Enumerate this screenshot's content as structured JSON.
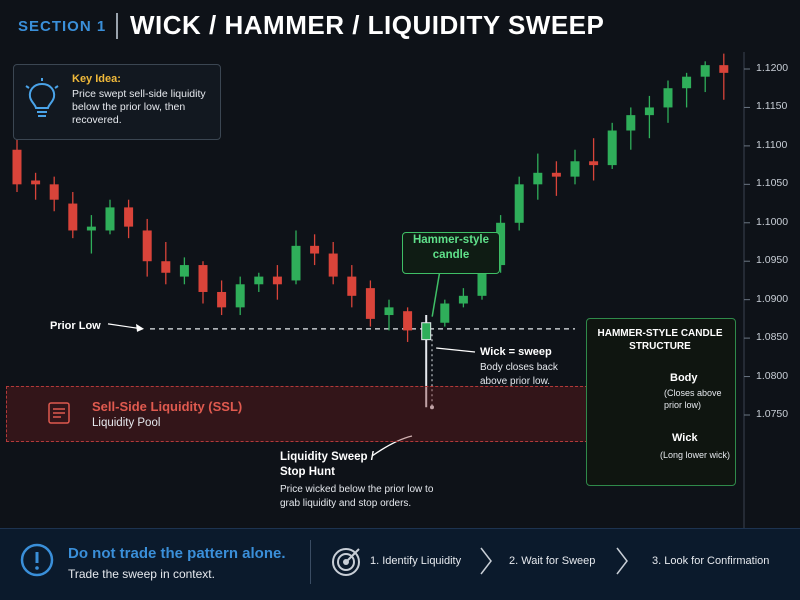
{
  "header": {
    "section": "SECTION 1",
    "title": "WICK / HAMMER / LIQUIDITY SWEEP"
  },
  "key_idea": {
    "title": "Key Idea:",
    "text": "Price swept sell-side liquidity below the prior low, then recovered."
  },
  "annotations": {
    "prior_low": "Prior Low",
    "hammer": "Hammer-style candle",
    "wick_title": "Wick = sweep",
    "wick_text": "Body closes back above prior low.",
    "sweep_title": "Liquidity Sweep / Stop Hunt",
    "sweep_text": "Price wicked below the prior low to grab liquidity and stop orders.",
    "ssl_title": "Sell-Side Liquidity (SSL)",
    "ssl_sub": "Liquidity Pool"
  },
  "structure": {
    "title": "HAMMER-STYLE CANDLE STRUCTURE",
    "body_label": "Body",
    "body_text": "(Closes above prior low)",
    "wick_label": "Wick",
    "wick_text": "(Long lower wick)"
  },
  "footer": {
    "main": "Do not trade the pattern alone.",
    "sub": "Trade the sweep in context.",
    "steps": [
      "1. Identify Liquidity",
      "2. Wait for Sweep",
      "3. Look for Confirmation"
    ]
  },
  "colors": {
    "bull": "#2fae5a",
    "bear": "#d9443a",
    "accent": "#3a8fd9",
    "ssl": "#e05a4f"
  },
  "chart_data": {
    "type": "candlestick",
    "ylim": [
      1.07,
      1.1225
    ],
    "yticks": [
      "1.1200",
      "1.1150",
      "1.1100",
      "1.1050",
      "1.1000",
      "1.0950",
      "1.0900",
      "1.0850",
      "1.0800",
      "1.0750"
    ],
    "prior_low": 1.0862,
    "candles": [
      {
        "o": 1.1095,
        "h": 1.111,
        "l": 1.104,
        "c": 1.105
      },
      {
        "o": 1.1055,
        "h": 1.1065,
        "l": 1.103,
        "c": 1.105
      },
      {
        "o": 1.105,
        "h": 1.106,
        "l": 1.1015,
        "c": 1.103
      },
      {
        "o": 1.1025,
        "h": 1.104,
        "l": 1.098,
        "c": 1.099
      },
      {
        "o": 1.099,
        "h": 1.101,
        "l": 1.096,
        "c": 1.0995
      },
      {
        "o": 1.099,
        "h": 1.103,
        "l": 1.0985,
        "c": 1.102
      },
      {
        "o": 1.102,
        "h": 1.103,
        "l": 1.098,
        "c": 1.0995
      },
      {
        "o": 1.099,
        "h": 1.1005,
        "l": 1.093,
        "c": 1.095
      },
      {
        "o": 1.095,
        "h": 1.0975,
        "l": 1.092,
        "c": 1.0935
      },
      {
        "o": 1.093,
        "h": 1.0955,
        "l": 1.092,
        "c": 1.0945
      },
      {
        "o": 1.0945,
        "h": 1.095,
        "l": 1.0895,
        "c": 1.091
      },
      {
        "o": 1.091,
        "h": 1.0925,
        "l": 1.088,
        "c": 1.089
      },
      {
        "o": 1.089,
        "h": 1.093,
        "l": 1.088,
        "c": 1.092
      },
      {
        "o": 1.092,
        "h": 1.0935,
        "l": 1.091,
        "c": 1.093
      },
      {
        "o": 1.093,
        "h": 1.0945,
        "l": 1.09,
        "c": 1.092
      },
      {
        "o": 1.0925,
        "h": 1.099,
        "l": 1.092,
        "c": 1.097
      },
      {
        "o": 1.097,
        "h": 1.0985,
        "l": 1.0945,
        "c": 1.096
      },
      {
        "o": 1.096,
        "h": 1.0975,
        "l": 1.092,
        "c": 1.093
      },
      {
        "o": 1.093,
        "h": 1.0945,
        "l": 1.089,
        "c": 1.0905
      },
      {
        "o": 1.0915,
        "h": 1.0925,
        "l": 1.0865,
        "c": 1.0875
      },
      {
        "o": 1.088,
        "h": 1.09,
        "l": 1.086,
        "c": 1.089
      },
      {
        "o": 1.0885,
        "h": 1.089,
        "l": 1.0845,
        "c": 1.086
      },
      {
        "o": 1.0848,
        "h": 1.088,
        "l": 1.076,
        "c": 1.087
      },
      {
        "o": 1.087,
        "h": 1.09,
        "l": 1.0865,
        "c": 1.0895
      },
      {
        "o": 1.0895,
        "h": 1.0915,
        "l": 1.089,
        "c": 1.0905
      },
      {
        "o": 1.0905,
        "h": 1.095,
        "l": 1.09,
        "c": 1.0945
      },
      {
        "o": 1.0945,
        "h": 1.101,
        "l": 1.0935,
        "c": 1.1
      },
      {
        "o": 1.1,
        "h": 1.106,
        "l": 1.099,
        "c": 1.105
      },
      {
        "o": 1.105,
        "h": 1.109,
        "l": 1.103,
        "c": 1.1065
      },
      {
        "o": 1.1065,
        "h": 1.108,
        "l": 1.1035,
        "c": 1.106
      },
      {
        "o": 1.106,
        "h": 1.1095,
        "l": 1.105,
        "c": 1.108
      },
      {
        "o": 1.108,
        "h": 1.111,
        "l": 1.1055,
        "c": 1.1075
      },
      {
        "o": 1.1075,
        "h": 1.113,
        "l": 1.107,
        "c": 1.112
      },
      {
        "o": 1.112,
        "h": 1.115,
        "l": 1.1095,
        "c": 1.114
      },
      {
        "o": 1.114,
        "h": 1.1165,
        "l": 1.111,
        "c": 1.115
      },
      {
        "o": 1.115,
        "h": 1.1185,
        "l": 1.113,
        "c": 1.1175
      },
      {
        "o": 1.1175,
        "h": 1.1195,
        "l": 1.115,
        "c": 1.119
      },
      {
        "o": 1.119,
        "h": 1.121,
        "l": 1.117,
        "c": 1.1205
      },
      {
        "o": 1.1205,
        "h": 1.122,
        "l": 1.116,
        "c": 1.1195
      }
    ]
  }
}
